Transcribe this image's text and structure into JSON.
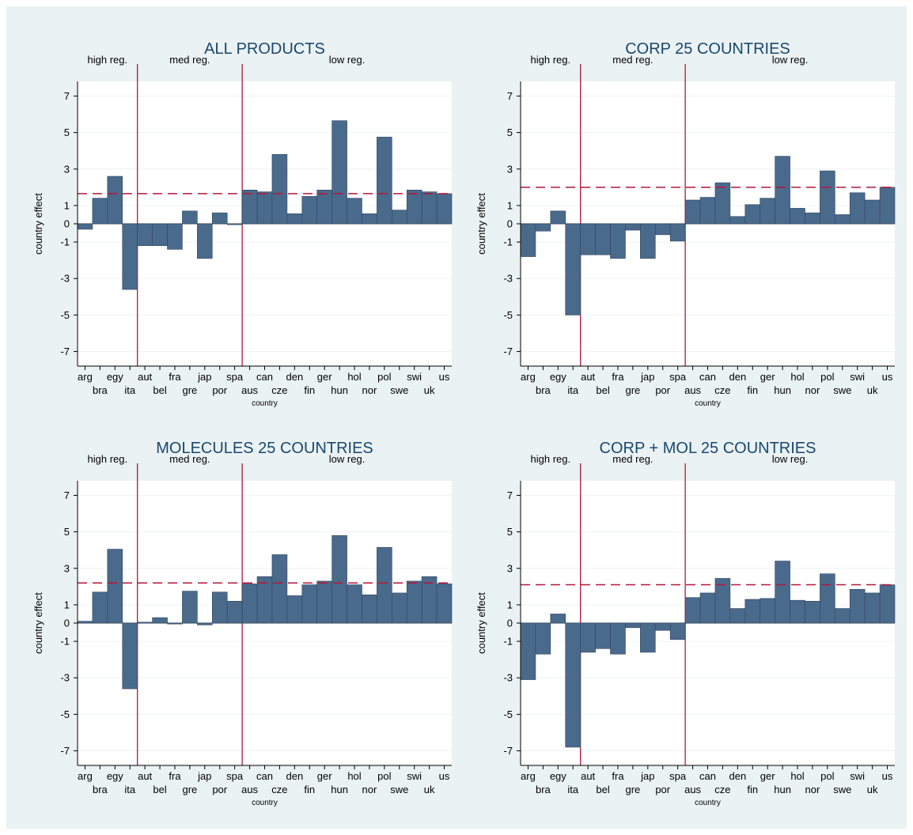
{
  "figure": {
    "colors": {
      "background": "#eaf2f3",
      "plot_area": "#ffffff",
      "bar_fill": "#4a6a8c",
      "bar_edge": "#2c4560",
      "reference_lines": "#b5163a",
      "title": "#1a476f"
    }
  },
  "chart_data": [
    {
      "type": "bar",
      "title": "ALL PRODUCTS",
      "xlabel": "country",
      "ylabel": "country effect",
      "ylim": [
        -7.8,
        7.8
      ],
      "yticks": [
        7,
        5,
        3,
        1,
        0,
        -1,
        -3,
        -5,
        -7
      ],
      "categories": [
        "arg",
        "bra",
        "egy",
        "ita",
        "aut",
        "bel",
        "fra",
        "gre",
        "jap",
        "por",
        "spa",
        "aus",
        "can",
        "cze",
        "den",
        "fin",
        "ger",
        "hun",
        "hol",
        "nor",
        "pol",
        "swe",
        "swi",
        "uk",
        "us"
      ],
      "values": [
        -0.3,
        1.4,
        2.6,
        -3.6,
        -1.2,
        -1.2,
        -1.4,
        0.7,
        -1.9,
        0.6,
        -0.05,
        1.85,
        1.75,
        3.8,
        0.55,
        1.5,
        1.85,
        5.65,
        1.4,
        0.55,
        4.75,
        0.75,
        1.85,
        1.75,
        1.65
      ],
      "mean_line": 1.65,
      "regime_labels": [
        "high reg.",
        "med reg.",
        "low reg."
      ],
      "regime_breaks_after": [
        "ita",
        "spa"
      ]
    },
    {
      "type": "bar",
      "title": "CORP 25 COUNTRIES",
      "xlabel": "country",
      "ylabel": "country effect",
      "ylim": [
        -7.8,
        7.8
      ],
      "yticks": [
        7,
        5,
        3,
        1,
        0,
        -1,
        -3,
        -5,
        -7
      ],
      "categories": [
        "arg",
        "bra",
        "egy",
        "ita",
        "aut",
        "bel",
        "fra",
        "gre",
        "jap",
        "por",
        "spa",
        "aus",
        "can",
        "cze",
        "den",
        "fin",
        "ger",
        "hun",
        "hol",
        "nor",
        "pol",
        "swe",
        "swi",
        "uk",
        "us"
      ],
      "values": [
        -1.8,
        -0.4,
        0.7,
        -5.0,
        -1.7,
        -1.7,
        -1.9,
        -0.35,
        -1.9,
        -0.6,
        -0.95,
        1.3,
        1.45,
        2.25,
        0.4,
        1.05,
        1.4,
        3.7,
        0.85,
        0.6,
        2.9,
        0.5,
        1.7,
        1.3,
        2.0
      ],
      "mean_line": 2.0,
      "regime_labels": [
        "high reg.",
        "med reg.",
        "low reg."
      ],
      "regime_breaks_after": [
        "ita",
        "spa"
      ]
    },
    {
      "type": "bar",
      "title": "MOLECULES 25 COUNTRIES",
      "xlabel": "country",
      "ylabel": "country effect",
      "ylim": [
        -7.8,
        7.8
      ],
      "yticks": [
        7,
        5,
        3,
        1,
        0,
        -1,
        -3,
        -5,
        -7
      ],
      "categories": [
        "arg",
        "bra",
        "egy",
        "ita",
        "aut",
        "bel",
        "fra",
        "gre",
        "jap",
        "por",
        "spa",
        "aus",
        "can",
        "cze",
        "den",
        "fin",
        "ger",
        "hun",
        "hol",
        "nor",
        "pol",
        "swe",
        "swi",
        "uk",
        "us"
      ],
      "values": [
        0.1,
        1.7,
        4.05,
        -3.6,
        0.05,
        0.3,
        -0.05,
        1.75,
        -0.1,
        1.7,
        1.2,
        2.15,
        2.55,
        3.75,
        1.5,
        2.1,
        2.3,
        4.8,
        2.1,
        1.55,
        4.15,
        1.65,
        2.3,
        2.55,
        2.15
      ],
      "mean_line": 2.2,
      "regime_labels": [
        "high reg.",
        "med reg.",
        "low reg."
      ],
      "regime_breaks_after": [
        "ita",
        "spa"
      ]
    },
    {
      "type": "bar",
      "title": "CORP + MOL 25 COUNTRIES",
      "xlabel": "country",
      "ylabel": "country effect",
      "ylim": [
        -7.8,
        7.8
      ],
      "yticks": [
        7,
        5,
        3,
        1,
        0,
        -1,
        -3,
        -5,
        -7
      ],
      "categories": [
        "arg",
        "bra",
        "egy",
        "ita",
        "aut",
        "bel",
        "fra",
        "gre",
        "jap",
        "por",
        "spa",
        "aus",
        "can",
        "cze",
        "den",
        "fin",
        "ger",
        "hun",
        "hol",
        "nor",
        "pol",
        "swe",
        "swi",
        "uk",
        "us"
      ],
      "values": [
        -3.1,
        -1.7,
        0.5,
        -6.8,
        -1.6,
        -1.4,
        -1.7,
        -0.25,
        -1.6,
        -0.4,
        -0.9,
        1.4,
        1.65,
        2.45,
        0.8,
        1.3,
        1.35,
        3.4,
        1.25,
        1.2,
        2.7,
        0.8,
        1.85,
        1.65,
        2.1
      ],
      "mean_line": 2.1,
      "regime_labels": [
        "high reg.",
        "med reg.",
        "low reg."
      ],
      "regime_breaks_after": [
        "ita",
        "spa"
      ]
    }
  ]
}
